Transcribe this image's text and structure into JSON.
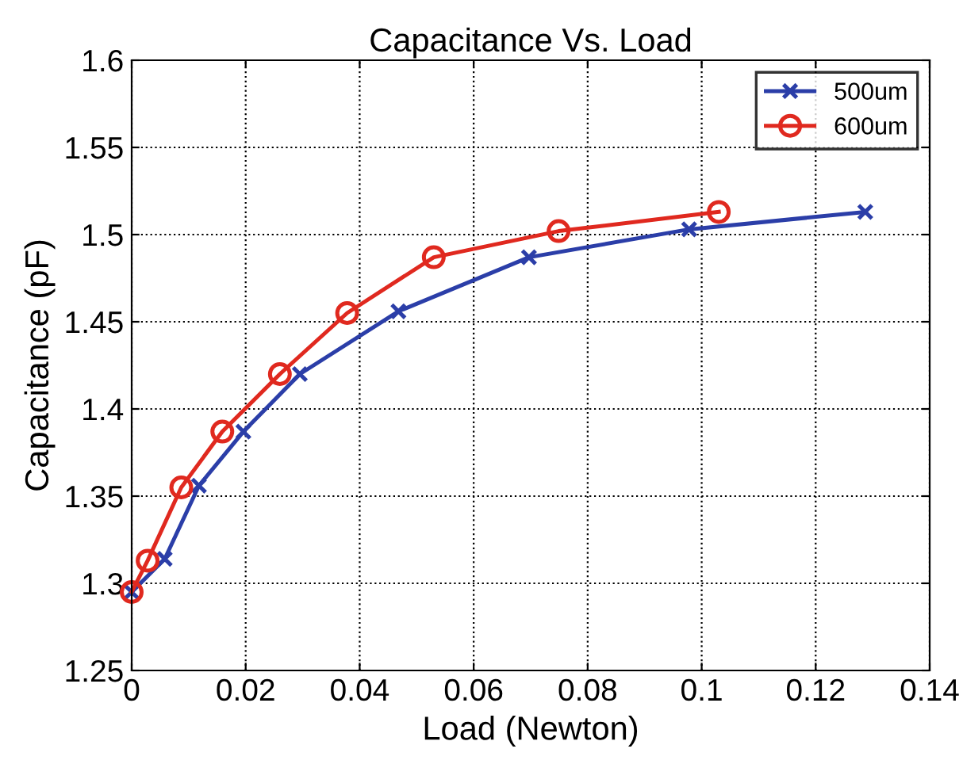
{
  "chart_data": {
    "type": "line",
    "title": "Capacitance Vs. Load",
    "xlabel": "Load (Newton)",
    "ylabel": "Capacitance (pF)",
    "xlim": [
      0,
      0.14
    ],
    "xticks": [
      0,
      0.02,
      0.04,
      0.06,
      0.08,
      0.1,
      0.12,
      0.14
    ],
    "ylim": [
      1.25,
      1.6
    ],
    "yticks": [
      1.25,
      1.3,
      1.35,
      1.4,
      1.45,
      1.5,
      1.55,
      1.6
    ],
    "grid": true,
    "legend": "top right",
    "series": [
      {
        "name": "500um",
        "color": "#2b3ea8",
        "marker": "cross",
        "x": [
          0,
          0.0058,
          0.0118,
          0.0196,
          0.0295,
          0.0468,
          0.0697,
          0.0978,
          0.1287
        ],
        "values": [
          1.295,
          1.314,
          1.356,
          1.387,
          1.42,
          1.456,
          1.487,
          1.503,
          1.513
        ]
      },
      {
        "name": "600um",
        "color": "#e0291f",
        "marker": "circle",
        "x": [
          0,
          0.0028,
          0.0087,
          0.0159,
          0.026,
          0.0378,
          0.053,
          0.0749,
          0.103
        ],
        "values": [
          1.295,
          1.313,
          1.355,
          1.387,
          1.42,
          1.455,
          1.487,
          1.502,
          1.513
        ]
      }
    ]
  }
}
